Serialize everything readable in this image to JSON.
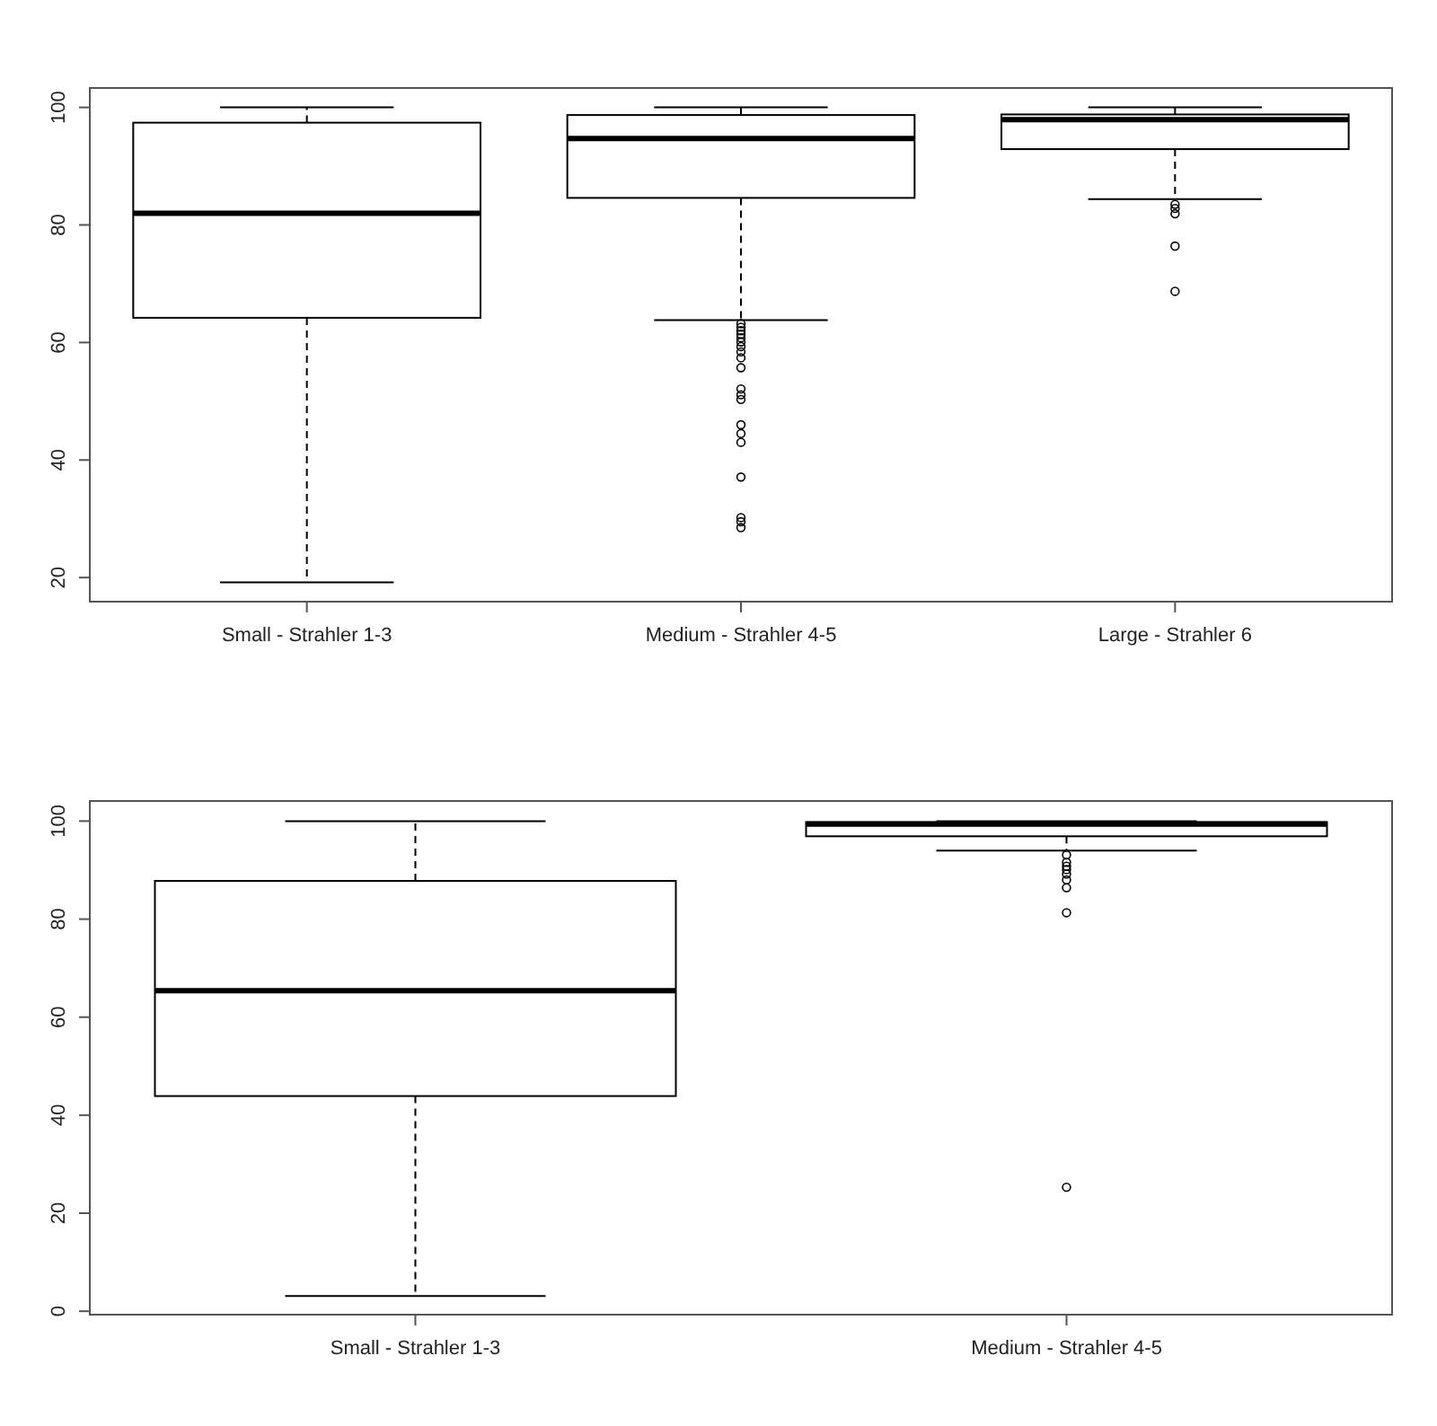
{
  "chart_data": [
    {
      "type": "box",
      "categories": [
        "Small - Strahler 1-3",
        "Medium - Strahler 4-5",
        "Large - Strahler 6"
      ],
      "ylim": [
        15.9,
        103.3
      ],
      "yticks": [
        20,
        40,
        60,
        80,
        100
      ],
      "boxes": [
        {
          "low": 19.2,
          "q1": 64.2,
          "median": 82.0,
          "q3": 97.4,
          "high": 100
        },
        {
          "low": 63.8,
          "q1": 84.6,
          "median": 94.7,
          "q3": 98.7,
          "high": 100,
          "outliers": [
            63.2,
            62.6,
            62,
            61.4,
            60.8,
            60.1,
            59.3,
            58.4,
            57.4,
            55.7,
            52.1,
            51.1,
            50.3,
            46.0,
            44.5,
            43.0,
            37.1,
            30.2,
            29.5,
            28.5
          ]
        },
        {
          "low": 84.4,
          "q1": 92.9,
          "median": 97.9,
          "q3": 98.8,
          "high": 100,
          "outliers": [
            83.5,
            82.8,
            81.9,
            76.4,
            68.7
          ]
        }
      ]
    },
    {
      "type": "box",
      "categories": [
        "Small - Strahler 1-3",
        "Medium - Strahler 4-5"
      ],
      "ylim": [
        -0.7,
        104.1
      ],
      "yticks": [
        0,
        20,
        40,
        60,
        80,
        100
      ],
      "boxes": [
        {
          "low": 3.1,
          "q1": 43.9,
          "median": 65.4,
          "q3": 87.8,
          "high": 100
        },
        {
          "low": 94.0,
          "q1": 96.9,
          "median": 99.4,
          "q3": 99.8,
          "high": 100,
          "outliers": [
            93.1,
            91.6,
            90.8,
            90.1,
            89.2,
            88.0,
            86.4,
            81.3,
            25.3
          ]
        }
      ]
    }
  ]
}
